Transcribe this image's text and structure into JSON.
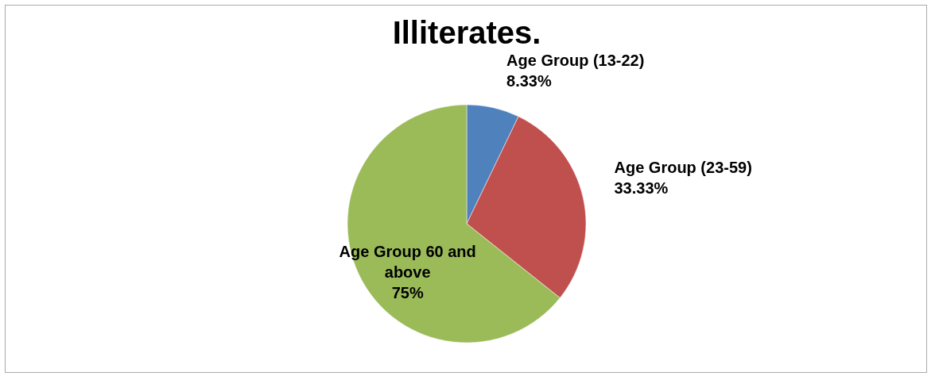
{
  "chart_data": {
    "type": "pie",
    "title": "Illiterates.",
    "categories": [
      "Age Group (13-22)",
      "Age Group (23-59)",
      "Age Group 60 and above"
    ],
    "values": [
      8.33,
      33.33,
      75
    ],
    "value_labels": [
      "8.33%",
      "33.33%",
      "75%"
    ],
    "colors": [
      "#4f81bd",
      "#c0504d",
      "#9bbb59"
    ],
    "legend": false
  }
}
